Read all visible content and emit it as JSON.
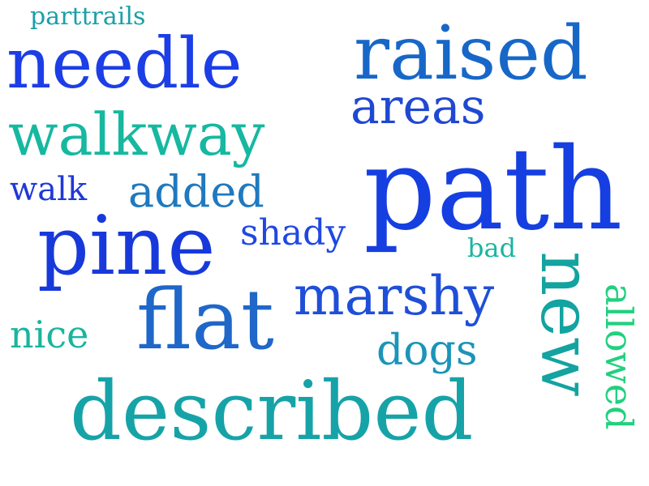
{
  "words": {
    "parttrails": {
      "text": "parttrails",
      "color": "#1aa0a8"
    },
    "needle": {
      "text": "needle",
      "color": "#1c3ee6"
    },
    "raised": {
      "text": "raised",
      "color": "#1767c8"
    },
    "areas": {
      "text": "areas",
      "color": "#1f48d2"
    },
    "walkway": {
      "text": "walkway",
      "color": "#16b8a0"
    },
    "path": {
      "text": "path",
      "color": "#153fe0"
    },
    "walk": {
      "text": "walk",
      "color": "#1f38d8"
    },
    "added": {
      "text": "added",
      "color": "#1f79bf"
    },
    "pine": {
      "text": "pine",
      "color": "#1739db"
    },
    "shady": {
      "text": "shady",
      "color": "#1f48e2"
    },
    "bad": {
      "text": "bad",
      "color": "#1ab59e"
    },
    "marshy": {
      "text": "marshy",
      "color": "#1f4fd8"
    },
    "flat": {
      "text": "flat",
      "color": "#1f67c9"
    },
    "nice": {
      "text": "nice",
      "color": "#18b59e"
    },
    "dogs": {
      "text": "dogs",
      "color": "#1b94b8"
    },
    "described": {
      "text": "described",
      "color": "#16a3a8"
    },
    "new": {
      "text": "new",
      "color": "#13a3a0"
    },
    "allowed": {
      "text": "allowed",
      "color": "#22d07f"
    }
  }
}
